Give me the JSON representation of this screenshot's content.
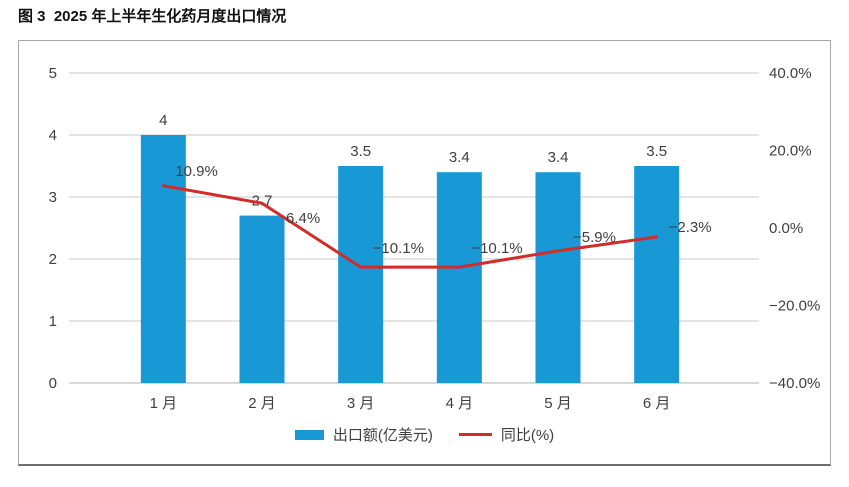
{
  "page": {
    "title": "图 3  2025 年上半年生化药月度出口情况"
  },
  "chart_data": {
    "type": "bar",
    "subtype": "bar-line-combo",
    "title": "图 3  2025 年上半年生化药月度出口情况",
    "categories": [
      "1 月",
      "2 月",
      "3 月",
      "4 月",
      "5 月",
      "6 月"
    ],
    "series": [
      {
        "name": "出口额(亿美元)",
        "type": "bar",
        "axis": "left",
        "values": [
          4,
          2.7,
          3.5,
          3.4,
          3.4,
          3.5
        ],
        "labels": [
          "4",
          "2.7",
          "3.5",
          "3.4",
          "3.4",
          "3.5"
        ],
        "color": "#1899d5"
      },
      {
        "name": "同比(%)",
        "type": "line",
        "axis": "right",
        "values": [
          10.9,
          6.4,
          -10.1,
          -10.1,
          -5.9,
          -2.3
        ],
        "labels": [
          "10.9%",
          "6.4%",
          "−10.1%",
          "−10.1%",
          "−5.9%",
          "−2.3%"
        ],
        "color": "#d22b28"
      }
    ],
    "left_axis": {
      "min": 0,
      "max": 5,
      "tick_step": 1,
      "tick_labels": [
        "0",
        "1",
        "2",
        "3",
        "4",
        "5"
      ]
    },
    "right_axis": {
      "min": -40,
      "max": 40,
      "tick_step": 20,
      "tick_labels": [
        "40.0%",
        "20.0%",
        "0.0%",
        "−20.0%",
        "−40.0%"
      ]
    },
    "grid": true,
    "legend_position": "bottom",
    "colors": {
      "grid": "#c8c8c8",
      "baseline": "#b0b0b0",
      "text": "#3f3f3f",
      "panel_border": "#a9a9a9"
    }
  }
}
